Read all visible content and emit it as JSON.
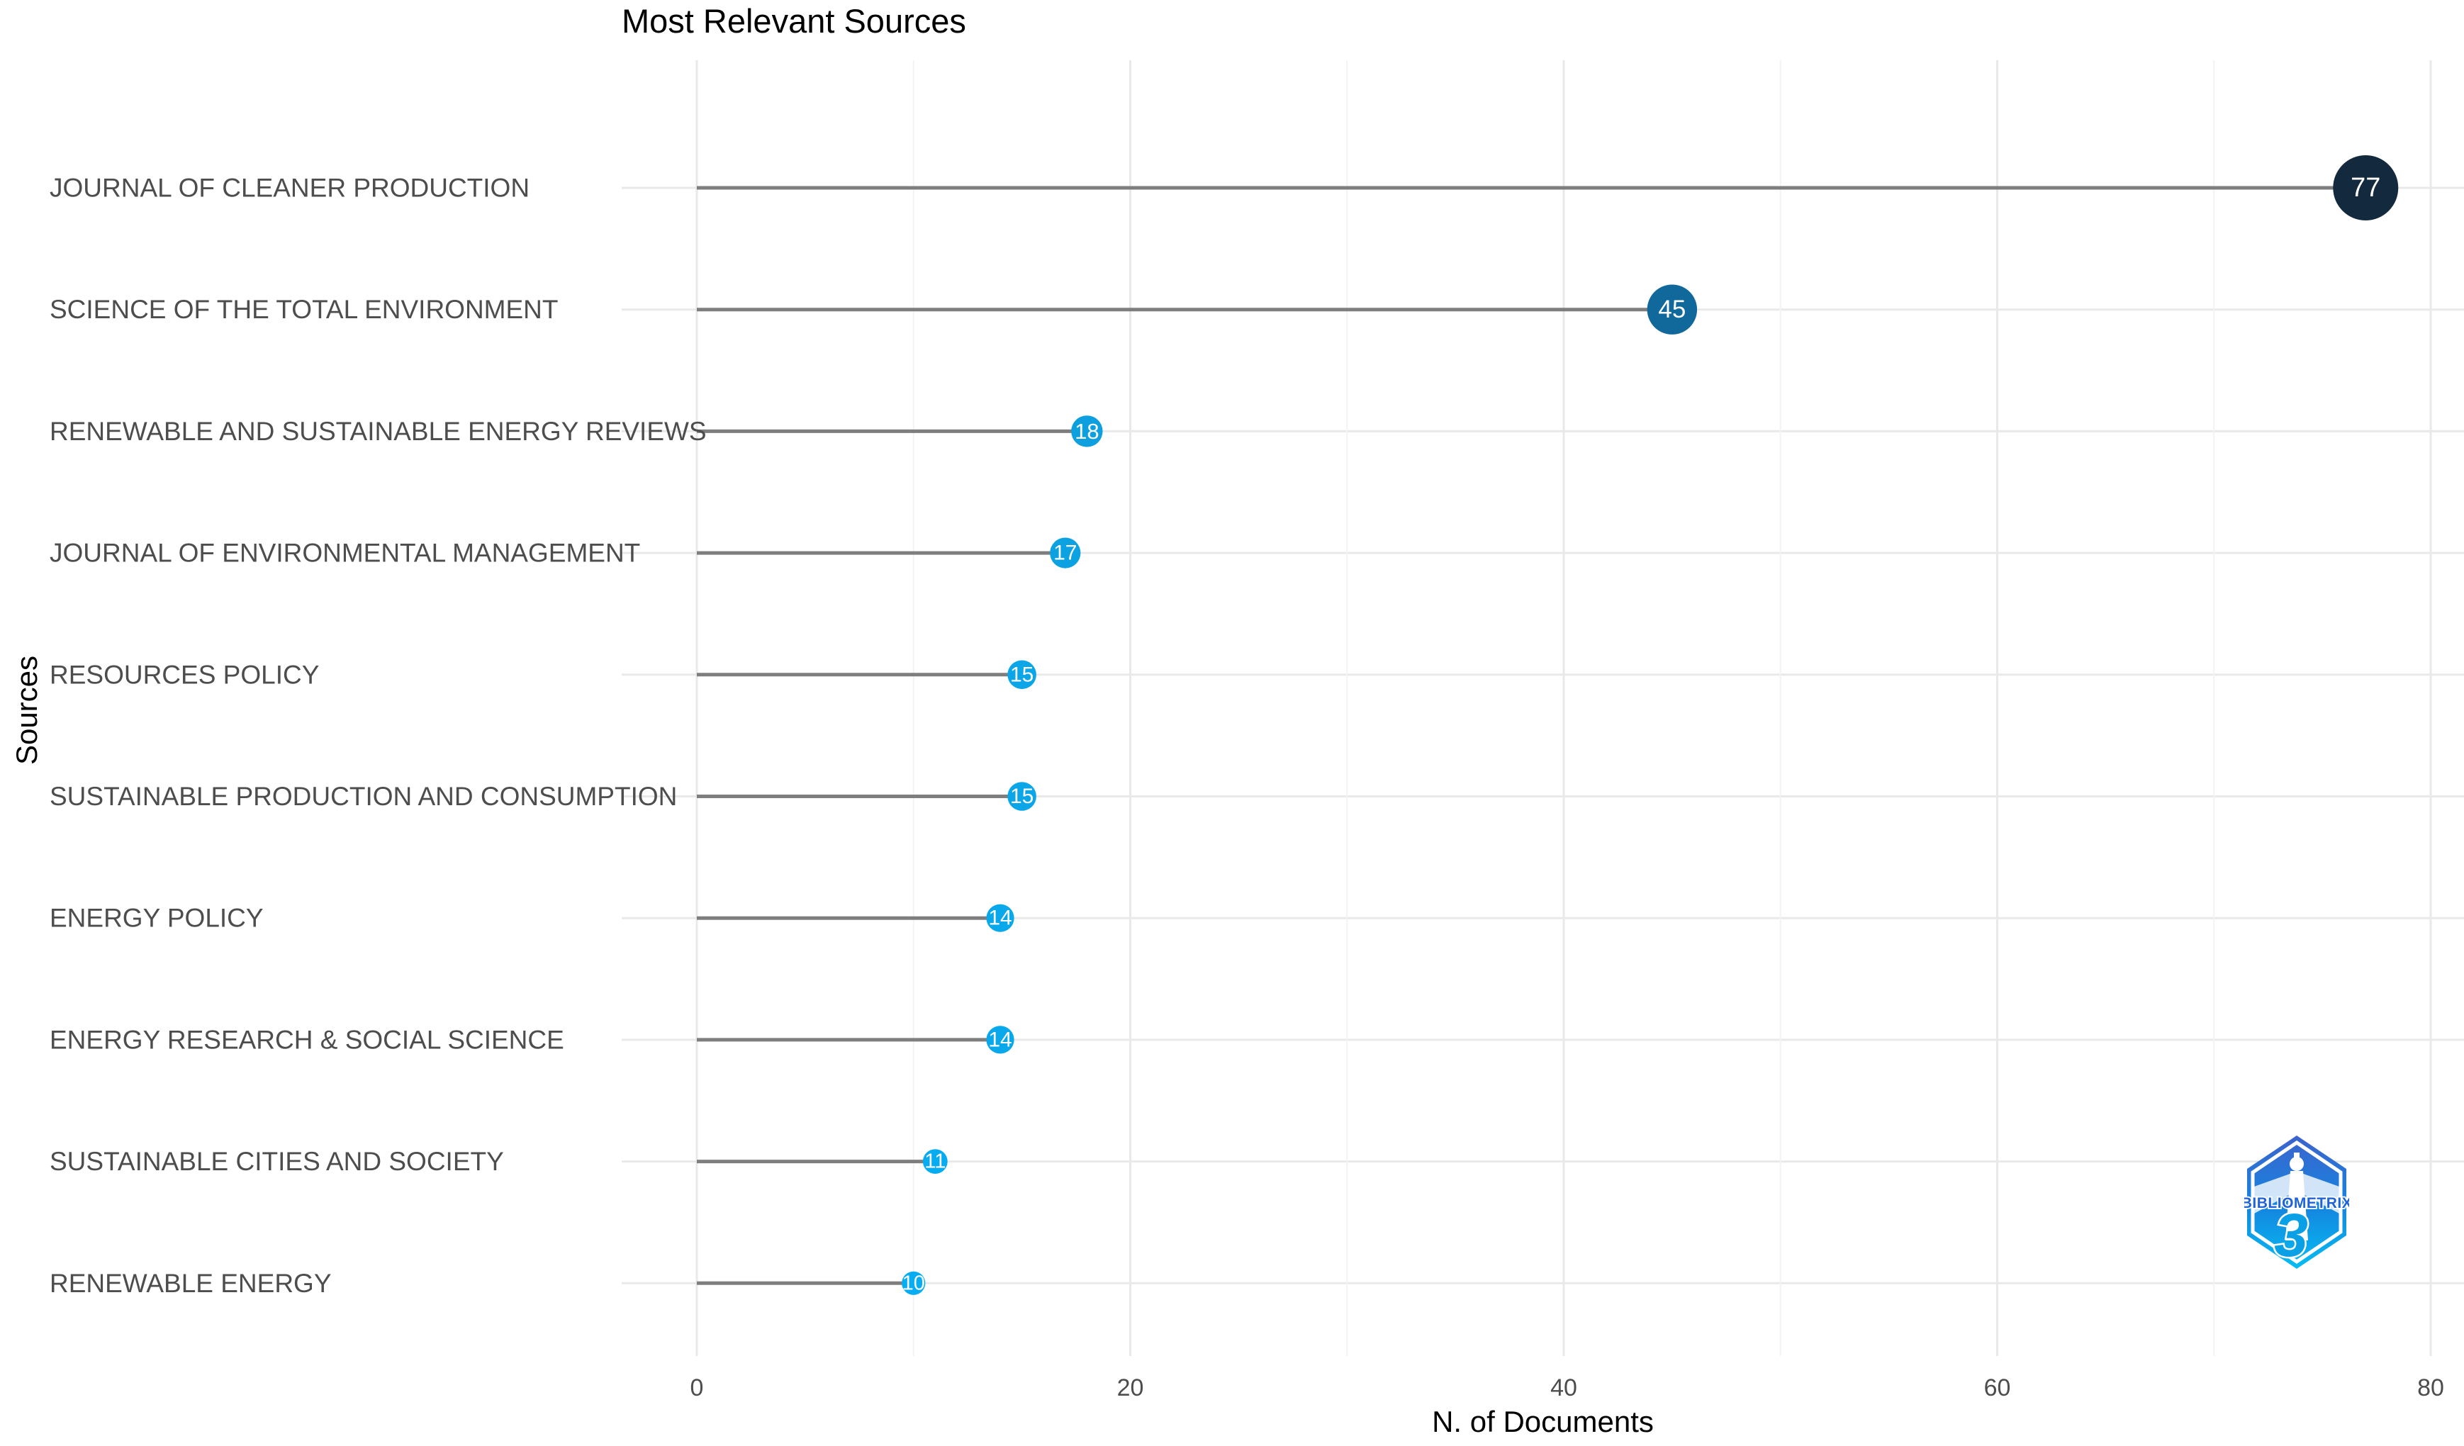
{
  "title": "Most Relevant Sources",
  "chart_data": {
    "type": "bar",
    "variant": "lollipop-dot",
    "orientation": "horizontal",
    "title": "Most Relevant Sources",
    "xlabel": "N. of Documents",
    "ylabel": "Sources",
    "categories": [
      "JOURNAL OF CLEANER PRODUCTION",
      "SCIENCE OF THE TOTAL ENVIRONMENT",
      "RENEWABLE AND SUSTAINABLE ENERGY REVIEWS",
      "JOURNAL OF ENVIRONMENTAL MANAGEMENT",
      "RESOURCES POLICY",
      "SUSTAINABLE PRODUCTION AND CONSUMPTION",
      "ENERGY POLICY",
      "ENERGY RESEARCH & SOCIAL SCIENCE",
      "SUSTAINABLE CITIES AND SOCIETY",
      "RENEWABLE ENERGY"
    ],
    "values": [
      77,
      45,
      18,
      17,
      15,
      15,
      14,
      14,
      11,
      10
    ],
    "point_labels": [
      "77",
      "45",
      "18",
      "17",
      "15",
      "15",
      "14",
      "14",
      "11",
      "10"
    ],
    "xlim": [
      0,
      80
    ],
    "x_major_ticks": [
      0,
      20,
      40,
      60,
      80
    ],
    "x_minor_ticks": [
      10,
      30,
      50,
      70
    ],
    "grid": true,
    "legend": "none",
    "colors": {
      "point_fill_by_value": [
        "#13293D",
        "#11689A",
        "#0D9FDE",
        "#0CA2E2",
        "#0AA6E8",
        "#0AA6E8",
        "#09A8EB",
        "#09A8EB",
        "#07ACF0",
        "#06ADF2"
      ],
      "point_label": "#FFFFFF",
      "stem": "#7E7E7E",
      "grid_major": "#E9E9E9",
      "grid_minor": "#F3F3F3",
      "axis_text": "#4D4D4D",
      "title_text": "#000000"
    }
  },
  "logo": {
    "text": "BIBLIOMETRIX",
    "numeral": "3"
  }
}
